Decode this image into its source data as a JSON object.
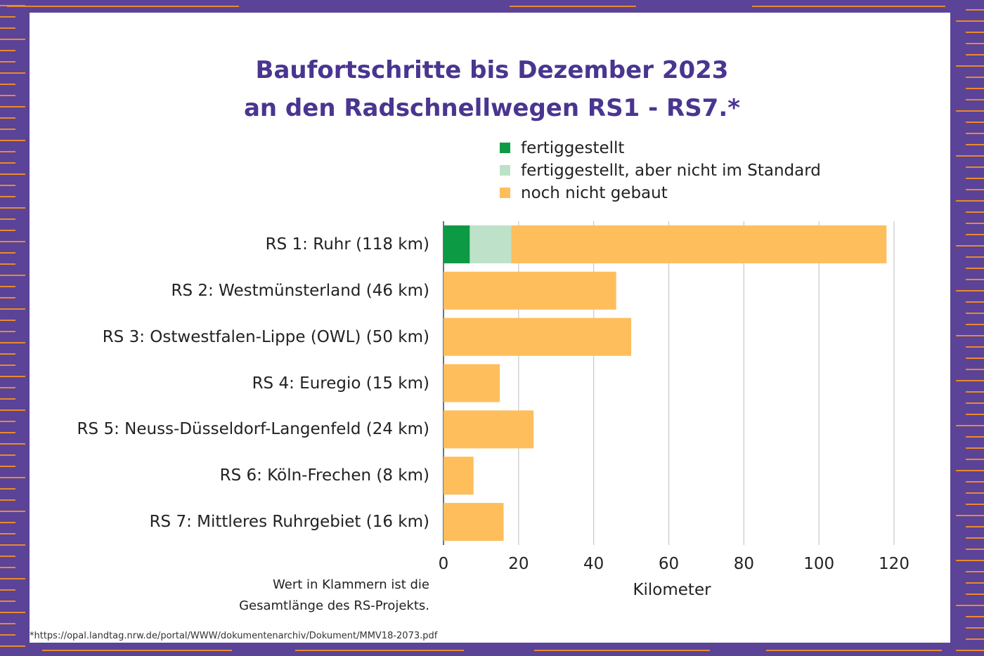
{
  "title_line1": "Baufortschritte bis Dezember 2023",
  "title_line2": "an den Radschnellwegen RS1 - RS7.*",
  "legend": [
    {
      "label": "fertiggestellt",
      "color": "#0d9a45"
    },
    {
      "label": "fertiggestellt, aber nicht im Standard",
      "color": "#bde2c9"
    },
    {
      "label": "noch nicht gebaut",
      "color": "#febe5c"
    }
  ],
  "chart_data": {
    "type": "bar",
    "orientation": "horizontal",
    "stacked": true,
    "categories": [
      "RS 1: Ruhr (118 km)",
      "RS 2: Westmünsterland (46 km)",
      "RS 3: Ostwestfalen-Lippe (OWL) (50 km)",
      "RS 4: Euregio (15 km)",
      "RS 5: Neuss-Düsseldorf-Langenfeld (24 km)",
      "RS 6: Köln-Frechen (8 km)",
      "RS 7: Mittleres Ruhrgebiet (16 km)"
    ],
    "series": [
      {
        "name": "fertiggestellt",
        "color": "#0d9a45",
        "values": [
          7,
          0,
          0,
          0,
          0,
          0,
          0
        ]
      },
      {
        "name": "fertiggestellt, aber nicht im Standard",
        "color": "#bde2c9",
        "values": [
          11,
          0,
          0,
          0,
          0,
          0,
          0
        ]
      },
      {
        "name": "noch nicht gebaut",
        "color": "#febe5c",
        "values": [
          100,
          46,
          50,
          15,
          24,
          8,
          16
        ]
      }
    ],
    "xlabel": "Kilometer",
    "xlim": [
      0,
      120
    ],
    "xticks": [
      "0",
      "20",
      "40",
      "60",
      "80",
      "100",
      "120"
    ],
    "grid": "vertical"
  },
  "note_line1": "Wert in Klammern ist die",
  "note_line2": "Gesamtlänge des RS-Projekts.",
  "footnote": "*https://opal.landtag.nrw.de/portal/WWW/dokumentenarchiv/Dokument/MMV18-2073.pdf",
  "colors": {
    "background": "#5b4397",
    "card": "#ffffff",
    "title": "#4a3590",
    "accent_lines": "#e88a2e",
    "grid": "#c8c8c8"
  }
}
